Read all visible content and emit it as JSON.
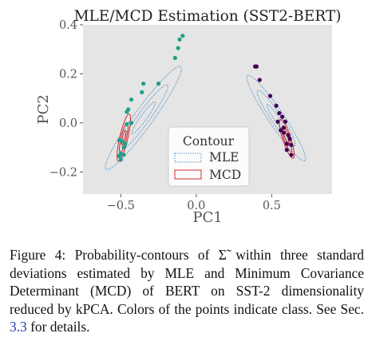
{
  "chart_data": {
    "type": "scatter",
    "title": "MLE/MCD Estimation (SST2-BERT)",
    "xlabel": "PC1",
    "ylabel": "PC2",
    "xlim": [
      -0.75,
      0.9
    ],
    "ylim": [
      -0.29,
      0.4
    ],
    "xticks": [
      -0.5,
      0.0,
      0.5
    ],
    "xtick_labels": [
      "−0.5",
      "0.0",
      "0.5"
    ],
    "yticks": [
      -0.2,
      0.0,
      0.2,
      0.4
    ],
    "ytick_labels": [
      "−0.2",
      "0.0",
      "0.2",
      "0.4"
    ],
    "grid": false,
    "background": "#e5e5e5",
    "legend": {
      "title": "Contour",
      "placement": "lower-center",
      "entries": [
        {
          "label": "MLE",
          "style": "dotted",
          "color": "#2f7fc1"
        },
        {
          "label": "MCD",
          "style": "solid",
          "color": "#d62728"
        }
      ]
    },
    "series": [
      {
        "color": "#1f9e89",
        "points": [
          [
            -0.09,
            0.355
          ],
          [
            -0.11,
            0.34
          ],
          [
            -0.12,
            0.305
          ],
          [
            -0.14,
            0.265
          ],
          [
            -0.25,
            0.16
          ],
          [
            -0.35,
            0.16
          ],
          [
            -0.36,
            0.125
          ],
          [
            -0.43,
            0.095
          ],
          [
            -0.45,
            0.055
          ],
          [
            -0.46,
            0.045
          ],
          [
            -0.43,
            0.0
          ],
          [
            -0.46,
            -0.005
          ],
          [
            -0.49,
            -0.075
          ],
          [
            -0.47,
            -0.085
          ],
          [
            -0.51,
            -0.07
          ],
          [
            -0.48,
            -0.1
          ],
          [
            -0.5,
            -0.125
          ],
          [
            -0.51,
            -0.135
          ],
          [
            -0.5,
            -0.15
          ],
          [
            -0.48,
            -0.13
          ]
        ]
      },
      {
        "color": "#440154",
        "points": [
          [
            0.39,
            0.23
          ],
          [
            0.4,
            0.23
          ],
          [
            0.42,
            0.175
          ],
          [
            0.49,
            0.11
          ],
          [
            0.53,
            0.07
          ],
          [
            0.55,
            0.04
          ],
          [
            0.54,
            0.005
          ],
          [
            0.57,
            0.025
          ],
          [
            0.59,
            0.005
          ],
          [
            0.56,
            -0.03
          ],
          [
            0.58,
            -0.02
          ],
          [
            0.61,
            -0.05
          ],
          [
            0.62,
            -0.065
          ],
          [
            0.6,
            -0.085
          ],
          [
            0.63,
            -0.09
          ],
          [
            0.6,
            -0.11
          ],
          [
            0.63,
            -0.13
          ],
          [
            0.58,
            -0.04
          ]
        ]
      }
    ],
    "contours": {
      "teal_mle": {
        "center": [
          -0.35,
          0.02
        ],
        "angle_deg": -54,
        "sd_semi": [
          [
            0.13,
            0.02
          ],
          [
            0.27,
            0.04
          ],
          [
            0.42,
            0.062
          ]
        ]
      },
      "teal_mcd": {
        "center": [
          -0.48,
          -0.06
        ],
        "angle_deg": -77,
        "sd_semi": [
          [
            0.05,
            0.009
          ],
          [
            0.1,
            0.018
          ],
          [
            0.16,
            0.027
          ]
        ]
      },
      "purple_mle": {
        "center": [
          0.53,
          0.02
        ],
        "angle_deg": 56,
        "sd_semi": [
          [
            0.11,
            0.016
          ],
          [
            0.22,
            0.034
          ],
          [
            0.34,
            0.051
          ]
        ]
      },
      "purple_mcd": {
        "center": [
          0.6,
          -0.065
        ],
        "angle_deg": 72,
        "sd_semi": [
          [
            0.045,
            0.009
          ],
          [
            0.09,
            0.018
          ],
          [
            0.135,
            0.027
          ]
        ]
      }
    }
  },
  "caption": {
    "label": "Figure 4:",
    "text_before_ref": "Probability-contours of Σ̃ within three standard deviations estimated by MLE and Minimum Covariance Determinant (MCD) of BERT on SST-2 dimensionality reduced by kPCA. Colors of the points indicate class. See Sec.",
    "ref": "3.3",
    "text_after_ref": "for details."
  }
}
